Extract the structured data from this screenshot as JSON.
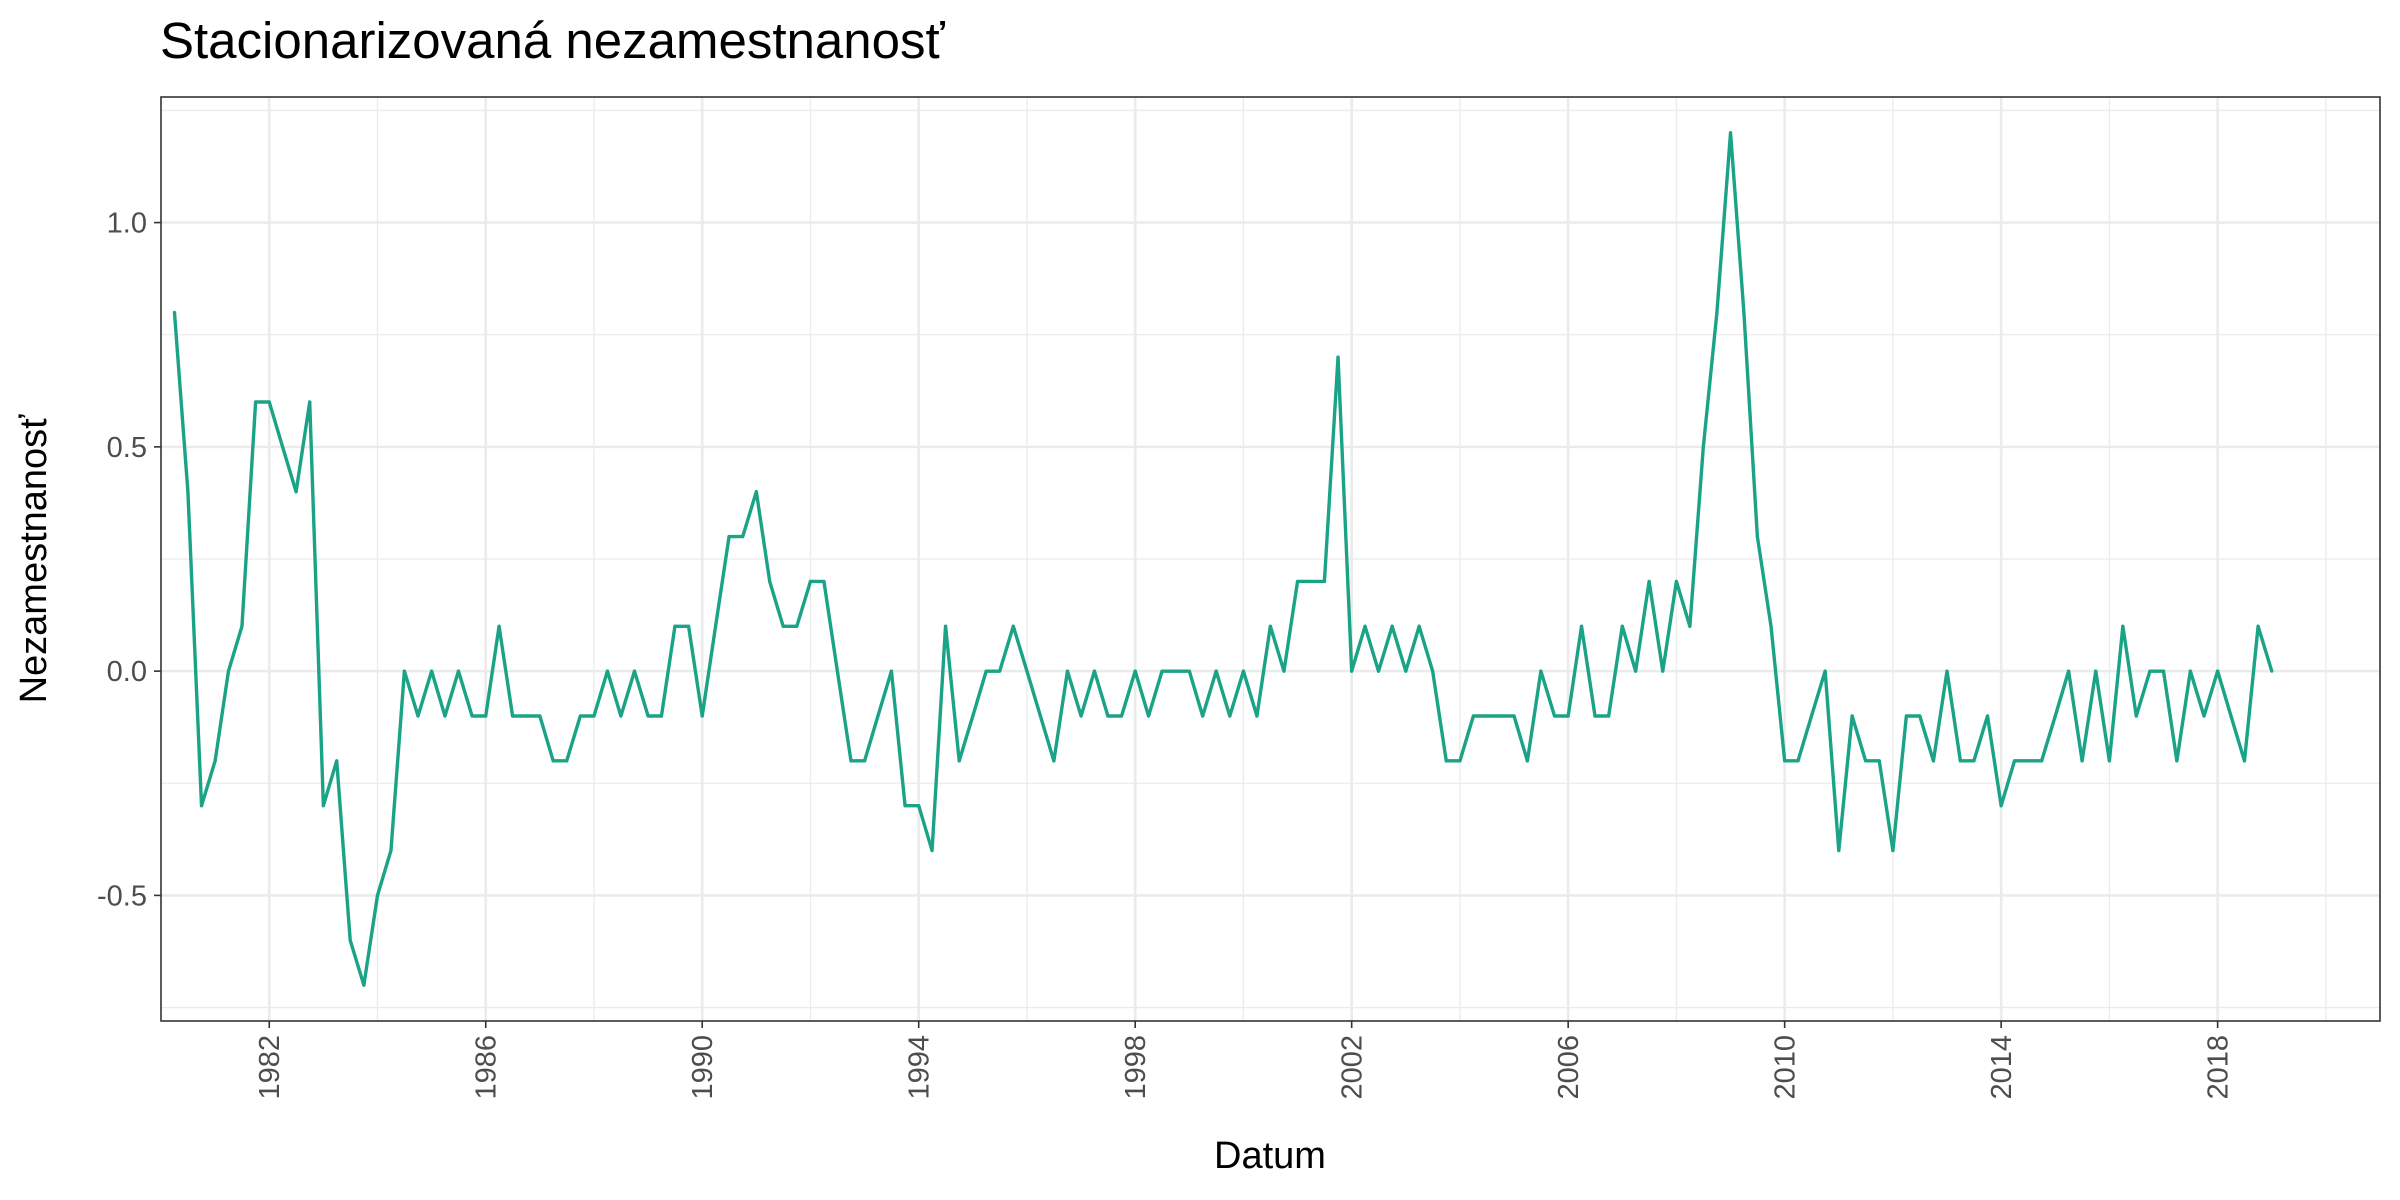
{
  "chart_data": {
    "type": "line",
    "title": "Stacionarizovaná nezamestnanosť",
    "xlabel": "Datum",
    "ylabel": "Nezamestnanosť",
    "x_major_ticks": [
      "1982",
      "1986",
      "1990",
      "1994",
      "1998",
      "2002",
      "2006",
      "2010",
      "2014",
      "2018"
    ],
    "y_ticks": [
      "-0.5",
      "0.0",
      "0.5",
      "1.0"
    ],
    "xlim": [
      "1980-01-01",
      "2020-12-31"
    ],
    "ylim": [
      -0.78,
      1.28
    ],
    "grid": true,
    "color": "#1aa386",
    "series": [
      {
        "x": [
          "1980-04-01",
          "1980-07-01",
          "1980-10-01",
          "1981-01-01",
          "1981-04-01",
          "1981-07-01",
          "1981-10-01",
          "1982-01-01",
          "1982-04-01",
          "1982-07-01",
          "1982-10-01",
          "1983-01-01",
          "1983-04-01",
          "1983-07-01",
          "1983-10-01",
          "1984-01-01",
          "1984-04-01",
          "1984-07-01",
          "1984-10-01",
          "1985-01-01",
          "1985-04-01",
          "1985-07-01",
          "1985-10-01",
          "1986-01-01",
          "1986-04-01",
          "1986-07-01",
          "1986-10-01",
          "1987-01-01",
          "1987-04-01",
          "1987-07-01",
          "1987-10-01",
          "1988-01-01",
          "1988-04-01",
          "1988-07-01",
          "1988-10-01",
          "1989-01-01",
          "1989-04-01",
          "1989-07-01",
          "1989-10-01",
          "1990-01-01",
          "1990-04-01",
          "1990-07-01",
          "1990-10-01",
          "1991-01-01",
          "1991-04-01",
          "1991-07-01",
          "1991-10-01",
          "1992-01-01",
          "1992-04-01",
          "1992-07-01",
          "1992-10-01",
          "1993-01-01",
          "1993-04-01",
          "1993-07-01",
          "1993-10-01",
          "1994-01-01",
          "1994-04-01",
          "1994-07-01",
          "1994-10-01",
          "1995-01-01",
          "1995-04-01",
          "1995-07-01",
          "1995-10-01",
          "1996-01-01",
          "1996-04-01",
          "1996-07-01",
          "1996-10-01",
          "1997-01-01",
          "1997-04-01",
          "1997-07-01",
          "1997-10-01",
          "1998-01-01",
          "1998-04-01",
          "1998-07-01",
          "1998-10-01",
          "1999-01-01",
          "1999-04-01",
          "1999-07-01",
          "1999-10-01",
          "2000-01-01",
          "2000-04-01",
          "2000-07-01",
          "2000-10-01",
          "2001-01-01",
          "2001-04-01",
          "2001-07-01",
          "2001-10-01",
          "2002-01-01",
          "2002-04-01",
          "2002-07-01",
          "2002-10-01",
          "2003-01-01",
          "2003-04-01",
          "2003-07-01",
          "2003-10-01",
          "2004-01-01",
          "2004-04-01",
          "2004-07-01",
          "2004-10-01",
          "2005-01-01",
          "2005-04-01",
          "2005-07-01",
          "2005-10-01",
          "2006-01-01",
          "2006-04-01",
          "2006-07-01",
          "2006-10-01",
          "2007-01-01",
          "2007-04-01",
          "2007-07-01",
          "2007-10-01",
          "2008-01-01",
          "2008-04-01",
          "2008-07-01",
          "2008-10-01",
          "2009-01-01",
          "2009-04-01",
          "2009-07-01",
          "2009-10-01",
          "2010-01-01",
          "2010-04-01",
          "2010-07-01",
          "2010-10-01",
          "2011-01-01",
          "2011-04-01",
          "2011-07-01",
          "2011-10-01",
          "2012-01-01",
          "2012-04-01",
          "2012-07-01",
          "2012-10-01",
          "2013-01-01",
          "2013-04-01",
          "2013-07-01",
          "2013-10-01",
          "2014-01-01",
          "2014-04-01",
          "2014-07-01",
          "2014-10-01",
          "2015-01-01",
          "2015-04-01",
          "2015-07-01",
          "2015-10-01",
          "2016-01-01",
          "2016-04-01",
          "2016-07-01",
          "2016-10-01",
          "2017-01-01",
          "2017-04-01",
          "2017-07-01",
          "2017-10-01",
          "2018-01-01",
          "2018-04-01",
          "2018-07-01",
          "2018-10-01",
          "2019-01-01"
        ],
        "y": [
          0.8,
          0.4,
          -0.3,
          -0.2,
          0.0,
          0.1,
          0.6,
          0.6,
          0.5,
          0.4,
          0.6,
          -0.3,
          -0.2,
          -0.6,
          -0.7,
          -0.5,
          -0.4,
          0.0,
          -0.1,
          0.0,
          -0.1,
          0.0,
          -0.1,
          -0.1,
          0.1,
          -0.1,
          -0.1,
          -0.1,
          -0.2,
          -0.2,
          -0.1,
          -0.1,
          0.0,
          -0.1,
          0.0,
          -0.1,
          -0.1,
          0.1,
          0.1,
          -0.1,
          0.1,
          0.3,
          0.3,
          0.4,
          0.2,
          0.1,
          0.1,
          0.2,
          0.2,
          0.0,
          -0.2,
          -0.2,
          -0.1,
          0.0,
          -0.3,
          -0.3,
          -0.4,
          0.1,
          -0.2,
          -0.1,
          0.0,
          0.0,
          0.1,
          0.0,
          -0.1,
          -0.2,
          0.0,
          -0.1,
          0.0,
          -0.1,
          -0.1,
          0.0,
          -0.1,
          0.0,
          0.0,
          0.0,
          -0.1,
          0.0,
          -0.1,
          0.0,
          -0.1,
          0.1,
          0.0,
          0.2,
          0.2,
          0.2,
          0.7,
          0.0,
          0.1,
          0.0,
          0.1,
          0.0,
          0.1,
          0.0,
          -0.2,
          -0.2,
          -0.1,
          -0.1,
          -0.1,
          -0.1,
          -0.2,
          0.0,
          -0.1,
          -0.1,
          0.1,
          -0.1,
          -0.1,
          0.1,
          0.0,
          0.2,
          0.0,
          0.2,
          0.1,
          0.5,
          0.8,
          1.2,
          0.8,
          0.3,
          0.1,
          -0.2,
          -0.2,
          -0.1,
          0.0,
          -0.4,
          -0.1,
          -0.2,
          -0.2,
          -0.4,
          -0.1,
          -0.1,
          -0.2,
          0.0,
          -0.2,
          -0.2,
          -0.1,
          -0.3,
          -0.2,
          -0.2,
          -0.2,
          -0.1,
          0.0,
          -0.2,
          0.0,
          -0.2,
          0.1,
          -0.1,
          0.0,
          0.0,
          -0.2,
          0.0,
          -0.1,
          0.0,
          -0.1,
          -0.2,
          0.1,
          0.0
        ]
      }
    ]
  }
}
